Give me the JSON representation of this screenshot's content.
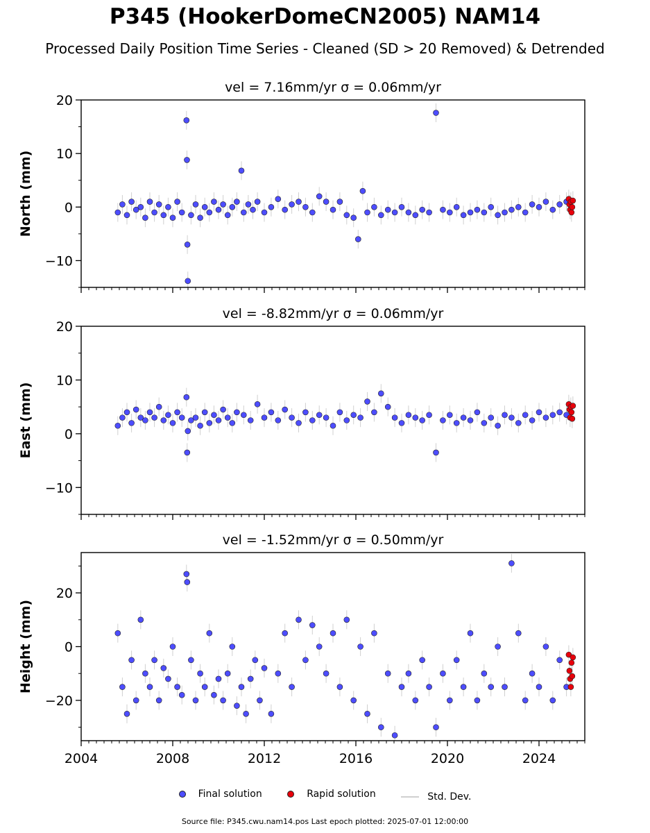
{
  "title": "P345 (HookerDomeCN2005) NAM14",
  "subtitle": "Processed Daily Position Time Series - Cleaned (SD > 20 Removed) & Detrended",
  "legend": {
    "final": "Final solution",
    "rapid": "Rapid solution",
    "std": "Std. Dev."
  },
  "footer": "Source file: P345.cwu.nam14.pos  Last epoch plotted: 2025-07-01 12:00:00",
  "colors": {
    "final": "#4d4dff",
    "rapid": "#e8000b",
    "std": "#b0b0b0",
    "edge": "#222222"
  },
  "chart_data": [
    {
      "type": "scatter",
      "panel": "north",
      "title": "vel = 7.16mm/yr   σ = 0.06mm/yr",
      "ylabel": "North (mm)",
      "xlim": [
        2004.0,
        2026.0
      ],
      "ylim": [
        -15,
        20
      ],
      "yticks": [
        -10,
        0,
        10,
        20
      ],
      "ytick_labels": [
        "−10",
        "0",
        "10",
        "20"
      ],
      "xticks": [
        2004,
        2008,
        2012,
        2016,
        2020,
        2024
      ],
      "xtick_labels": [
        "",
        "",
        "",
        "",
        "",
        ""
      ],
      "series": [
        {
          "name": "Final solution",
          "x": [
            2005.6,
            2005.8,
            2006.0,
            2006.2,
            2006.4,
            2006.6,
            2006.8,
            2007.0,
            2007.2,
            2007.4,
            2007.6,
            2007.8,
            2008.0,
            2008.2,
            2008.4,
            2008.6,
            2008.62,
            2008.64,
            2008.66,
            2008.8,
            2009.0,
            2009.2,
            2009.4,
            2009.6,
            2009.8,
            2010.0,
            2010.2,
            2010.4,
            2010.6,
            2010.8,
            2011.0,
            2011.1,
            2011.3,
            2011.5,
            2011.7,
            2012.0,
            2012.3,
            2012.6,
            2012.9,
            2013.2,
            2013.5,
            2013.8,
            2014.1,
            2014.4,
            2014.7,
            2015.0,
            2015.3,
            2015.6,
            2015.9,
            2016.1,
            2016.3,
            2016.5,
            2016.8,
            2017.1,
            2017.4,
            2017.7,
            2018.0,
            2018.3,
            2018.6,
            2018.9,
            2019.2,
            2019.5,
            2019.8,
            2020.1,
            2020.4,
            2020.7,
            2021.0,
            2021.3,
            2021.6,
            2021.9,
            2022.2,
            2022.5,
            2022.8,
            2023.1,
            2023.4,
            2023.7,
            2024.0,
            2024.3,
            2024.6,
            2024.9,
            2025.2
          ],
          "y": [
            -1.0,
            0.5,
            -1.5,
            1.0,
            -0.5,
            0.0,
            -2.0,
            1.0,
            -1.0,
            0.5,
            -1.5,
            0.0,
            -2.0,
            1.0,
            -1.0,
            16.2,
            8.8,
            -7.0,
            -13.8,
            -1.5,
            0.5,
            -2.0,
            0.0,
            -1.0,
            1.0,
            -0.5,
            0.5,
            -1.5,
            0.0,
            1.0,
            6.8,
            -1.0,
            0.5,
            -0.5,
            1.0,
            -1.0,
            0.0,
            1.5,
            -0.5,
            0.5,
            1.0,
            0.0,
            -1.0,
            2.0,
            1.0,
            -0.5,
            1.0,
            -1.5,
            -2.0,
            -6.0,
            3.0,
            -1.0,
            0.0,
            -1.5,
            -0.5,
            -1.0,
            0.0,
            -1.0,
            -1.5,
            -0.5,
            -1.0,
            17.6,
            -0.5,
            -1.0,
            0.0,
            -1.5,
            -1.0,
            -0.5,
            -1.0,
            0.0,
            -1.5,
            -1.0,
            -0.5,
            0.0,
            -1.0,
            0.5,
            0.0,
            1.0,
            -0.5,
            0.5,
            1.0
          ]
        },
        {
          "name": "Rapid solution",
          "x": [
            2025.3,
            2025.33,
            2025.36,
            2025.39,
            2025.42,
            2025.45,
            2025.48
          ],
          "y": [
            1.5,
            0.5,
            -0.5,
            1.0,
            -1.0,
            0.0,
            1.2
          ]
        }
      ]
    },
    {
      "type": "scatter",
      "panel": "east",
      "title": "vel = -8.82mm/yr   σ = 0.06mm/yr",
      "ylabel": "East (mm)",
      "xlim": [
        2004.0,
        2026.0
      ],
      "ylim": [
        -15,
        20
      ],
      "yticks": [
        -10,
        0,
        10,
        20
      ],
      "ytick_labels": [
        "−10",
        "0",
        "10",
        "20"
      ],
      "xticks": [
        2004,
        2008,
        2012,
        2016,
        2020,
        2024
      ],
      "xtick_labels": [
        "",
        "",
        "",
        "",
        "",
        ""
      ],
      "series": [
        {
          "name": "Final solution",
          "x": [
            2005.6,
            2005.8,
            2006.0,
            2006.2,
            2006.4,
            2006.6,
            2006.8,
            2007.0,
            2007.2,
            2007.4,
            2007.6,
            2007.8,
            2008.0,
            2008.2,
            2008.4,
            2008.6,
            2008.63,
            2008.66,
            2008.8,
            2009.0,
            2009.2,
            2009.4,
            2009.6,
            2009.8,
            2010.0,
            2010.2,
            2010.4,
            2010.6,
            2010.8,
            2011.1,
            2011.4,
            2011.7,
            2012.0,
            2012.3,
            2012.6,
            2012.9,
            2013.2,
            2013.5,
            2013.8,
            2014.1,
            2014.4,
            2014.7,
            2015.0,
            2015.3,
            2015.6,
            2015.9,
            2016.2,
            2016.5,
            2016.8,
            2017.1,
            2017.4,
            2017.7,
            2018.0,
            2018.3,
            2018.6,
            2018.9,
            2019.2,
            2019.5,
            2019.8,
            2020.1,
            2020.4,
            2020.7,
            2021.0,
            2021.3,
            2021.6,
            2021.9,
            2022.2,
            2022.5,
            2022.8,
            2023.1,
            2023.4,
            2023.7,
            2024.0,
            2024.3,
            2024.6,
            2024.9,
            2025.2
          ],
          "y": [
            1.5,
            3.0,
            4.0,
            2.0,
            4.5,
            3.0,
            2.5,
            4.0,
            3.0,
            5.0,
            2.5,
            3.5,
            2.0,
            4.0,
            3.0,
            6.8,
            -3.5,
            0.5,
            2.5,
            3.0,
            1.5,
            4.0,
            2.0,
            3.5,
            2.5,
            4.5,
            3.0,
            2.0,
            4.0,
            3.5,
            2.5,
            5.5,
            3.0,
            4.0,
            2.5,
            4.5,
            3.0,
            2.0,
            4.0,
            2.5,
            3.5,
            3.0,
            1.5,
            4.0,
            2.5,
            3.5,
            3.0,
            6.0,
            4.0,
            7.5,
            5.0,
            3.0,
            2.0,
            3.5,
            3.0,
            2.5,
            3.5,
            -3.5,
            2.5,
            3.5,
            2.0,
            3.0,
            2.5,
            4.0,
            2.0,
            3.0,
            1.5,
            3.5,
            3.0,
            2.0,
            3.5,
            2.5,
            4.0,
            3.0,
            3.5,
            4.0,
            3.5
          ]
        },
        {
          "name": "Rapid solution",
          "x": [
            2025.3,
            2025.33,
            2025.36,
            2025.39,
            2025.42,
            2025.45,
            2025.48
          ],
          "y": [
            5.5,
            4.5,
            3.0,
            5.0,
            4.0,
            2.8,
            5.2
          ]
        }
      ]
    },
    {
      "type": "scatter",
      "panel": "height",
      "title": "vel = -1.52mm/yr   σ = 0.50mm/yr",
      "ylabel": "Height (mm)",
      "xlim": [
        2004.0,
        2026.0
      ],
      "ylim": [
        -35,
        35
      ],
      "yticks": [
        -20,
        0,
        20
      ],
      "ytick_labels": [
        "−20",
        "0",
        "20"
      ],
      "xticks": [
        2004,
        2008,
        2012,
        2016,
        2020,
        2024
      ],
      "xtick_labels": [
        "2004",
        "2008",
        "2012",
        "2016",
        "2020",
        "2024"
      ],
      "series": [
        {
          "name": "Final solution",
          "x": [
            2005.6,
            2005.8,
            2006.0,
            2006.2,
            2006.4,
            2006.6,
            2006.8,
            2007.0,
            2007.2,
            2007.4,
            2007.6,
            2007.8,
            2008.0,
            2008.2,
            2008.4,
            2008.6,
            2008.63,
            2008.8,
            2009.0,
            2009.2,
            2009.4,
            2009.6,
            2009.8,
            2010.0,
            2010.2,
            2010.4,
            2010.6,
            2010.8,
            2011.0,
            2011.2,
            2011.4,
            2011.6,
            2011.8,
            2012.0,
            2012.3,
            2012.6,
            2012.9,
            2013.2,
            2013.5,
            2013.8,
            2014.1,
            2014.4,
            2014.7,
            2015.0,
            2015.3,
            2015.6,
            2015.9,
            2016.2,
            2016.5,
            2016.8,
            2017.1,
            2017.4,
            2017.7,
            2018.0,
            2018.3,
            2018.6,
            2018.9,
            2019.2,
            2019.5,
            2019.8,
            2020.1,
            2020.4,
            2020.7,
            2021.0,
            2021.3,
            2021.6,
            2021.9,
            2022.2,
            2022.5,
            2022.8,
            2023.1,
            2023.4,
            2023.7,
            2024.0,
            2024.3,
            2024.6,
            2024.9,
            2025.2
          ],
          "y": [
            5.0,
            -15.0,
            -25.0,
            -5.0,
            -20.0,
            10.0,
            -10.0,
            -15.0,
            -5.0,
            -20.0,
            -8.0,
            -12.0,
            0.0,
            -15.0,
            -18.0,
            27.0,
            24.0,
            -5.0,
            -20.0,
            -10.0,
            -15.0,
            5.0,
            -18.0,
            -12.0,
            -20.0,
            -10.0,
            0.0,
            -22.0,
            -15.0,
            -25.0,
            -12.0,
            -5.0,
            -20.0,
            -8.0,
            -25.0,
            -10.0,
            5.0,
            -15.0,
            10.0,
            -5.0,
            8.0,
            0.0,
            -10.0,
            5.0,
            -15.0,
            10.0,
            -20.0,
            0.0,
            -25.0,
            5.0,
            -30.0,
            -10.0,
            -33.0,
            -15.0,
            -10.0,
            -20.0,
            -5.0,
            -15.0,
            -30.0,
            -10.0,
            -20.0,
            -5.0,
            -15.0,
            5.0,
            -20.0,
            -10.0,
            -15.0,
            0.0,
            -15.0,
            31.0,
            5.0,
            -20.0,
            -10.0,
            -15.0,
            0.0,
            -20.0,
            -5.0,
            -15.0
          ]
        },
        {
          "name": "Rapid solution",
          "x": [
            2025.3,
            2025.33,
            2025.36,
            2025.39,
            2025.42,
            2025.45,
            2025.48
          ],
          "y": [
            -3.0,
            -9.0,
            -12.0,
            -15.0,
            -6.0,
            -11.0,
            -4.0
          ]
        }
      ]
    }
  ]
}
